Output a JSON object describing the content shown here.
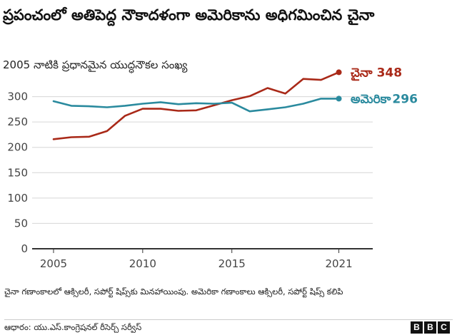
{
  "title": "ప్రపంచంలో అతిపెద్ద నౌకాదళంగా అమెరికాను అధిగమించిన చైనా",
  "subtitle": "2005 నాటికి ప్రధానమైన యుద్ధనౌకల సంఖ్య",
  "note": "చైనా గణాంకాలలో ఆక్సిలరీ, సపోర్ట్ షిప్స్‌కు మినహాయింపు. అమెరికా గణాంకాలు ఆక్సిలరీ, సపోర్ట్ షిప్స్ కలిపి",
  "source": "ఆధారం: యు.ఎస్.కాంగ్రెషనల్ రీసెర్చ్ సర్వీస్",
  "logo_letters": [
    "B",
    "B",
    "C"
  ],
  "chart_data": {
    "type": "line",
    "x": [
      2005,
      2006,
      2007,
      2008,
      2009,
      2010,
      2011,
      2012,
      2013,
      2014,
      2015,
      2016,
      2017,
      2018,
      2019,
      2020,
      2021
    ],
    "xticks": [
      2005,
      2010,
      2015,
      2021
    ],
    "yticks": [
      0,
      50,
      100,
      150,
      200,
      250,
      300
    ],
    "xlim": [
      2003.8,
      2022.9
    ],
    "ylim": [
      0,
      350
    ],
    "grid": true,
    "series": [
      {
        "name": "చైనా",
        "end_label": "348",
        "color": "#a92918",
        "values": [
          216,
          220,
          221,
          232,
          262,
          276,
          276,
          272,
          273,
          283,
          293,
          301,
          317,
          306,
          335,
          333,
          348
        ]
      },
      {
        "name": "అమెరికా",
        "end_label": "296",
        "color": "#2a8a9e",
        "values": [
          291,
          282,
          281,
          279,
          282,
          286,
          289,
          285,
          287,
          286,
          288,
          271,
          275,
          279,
          286,
          296,
          296
        ]
      }
    ]
  }
}
